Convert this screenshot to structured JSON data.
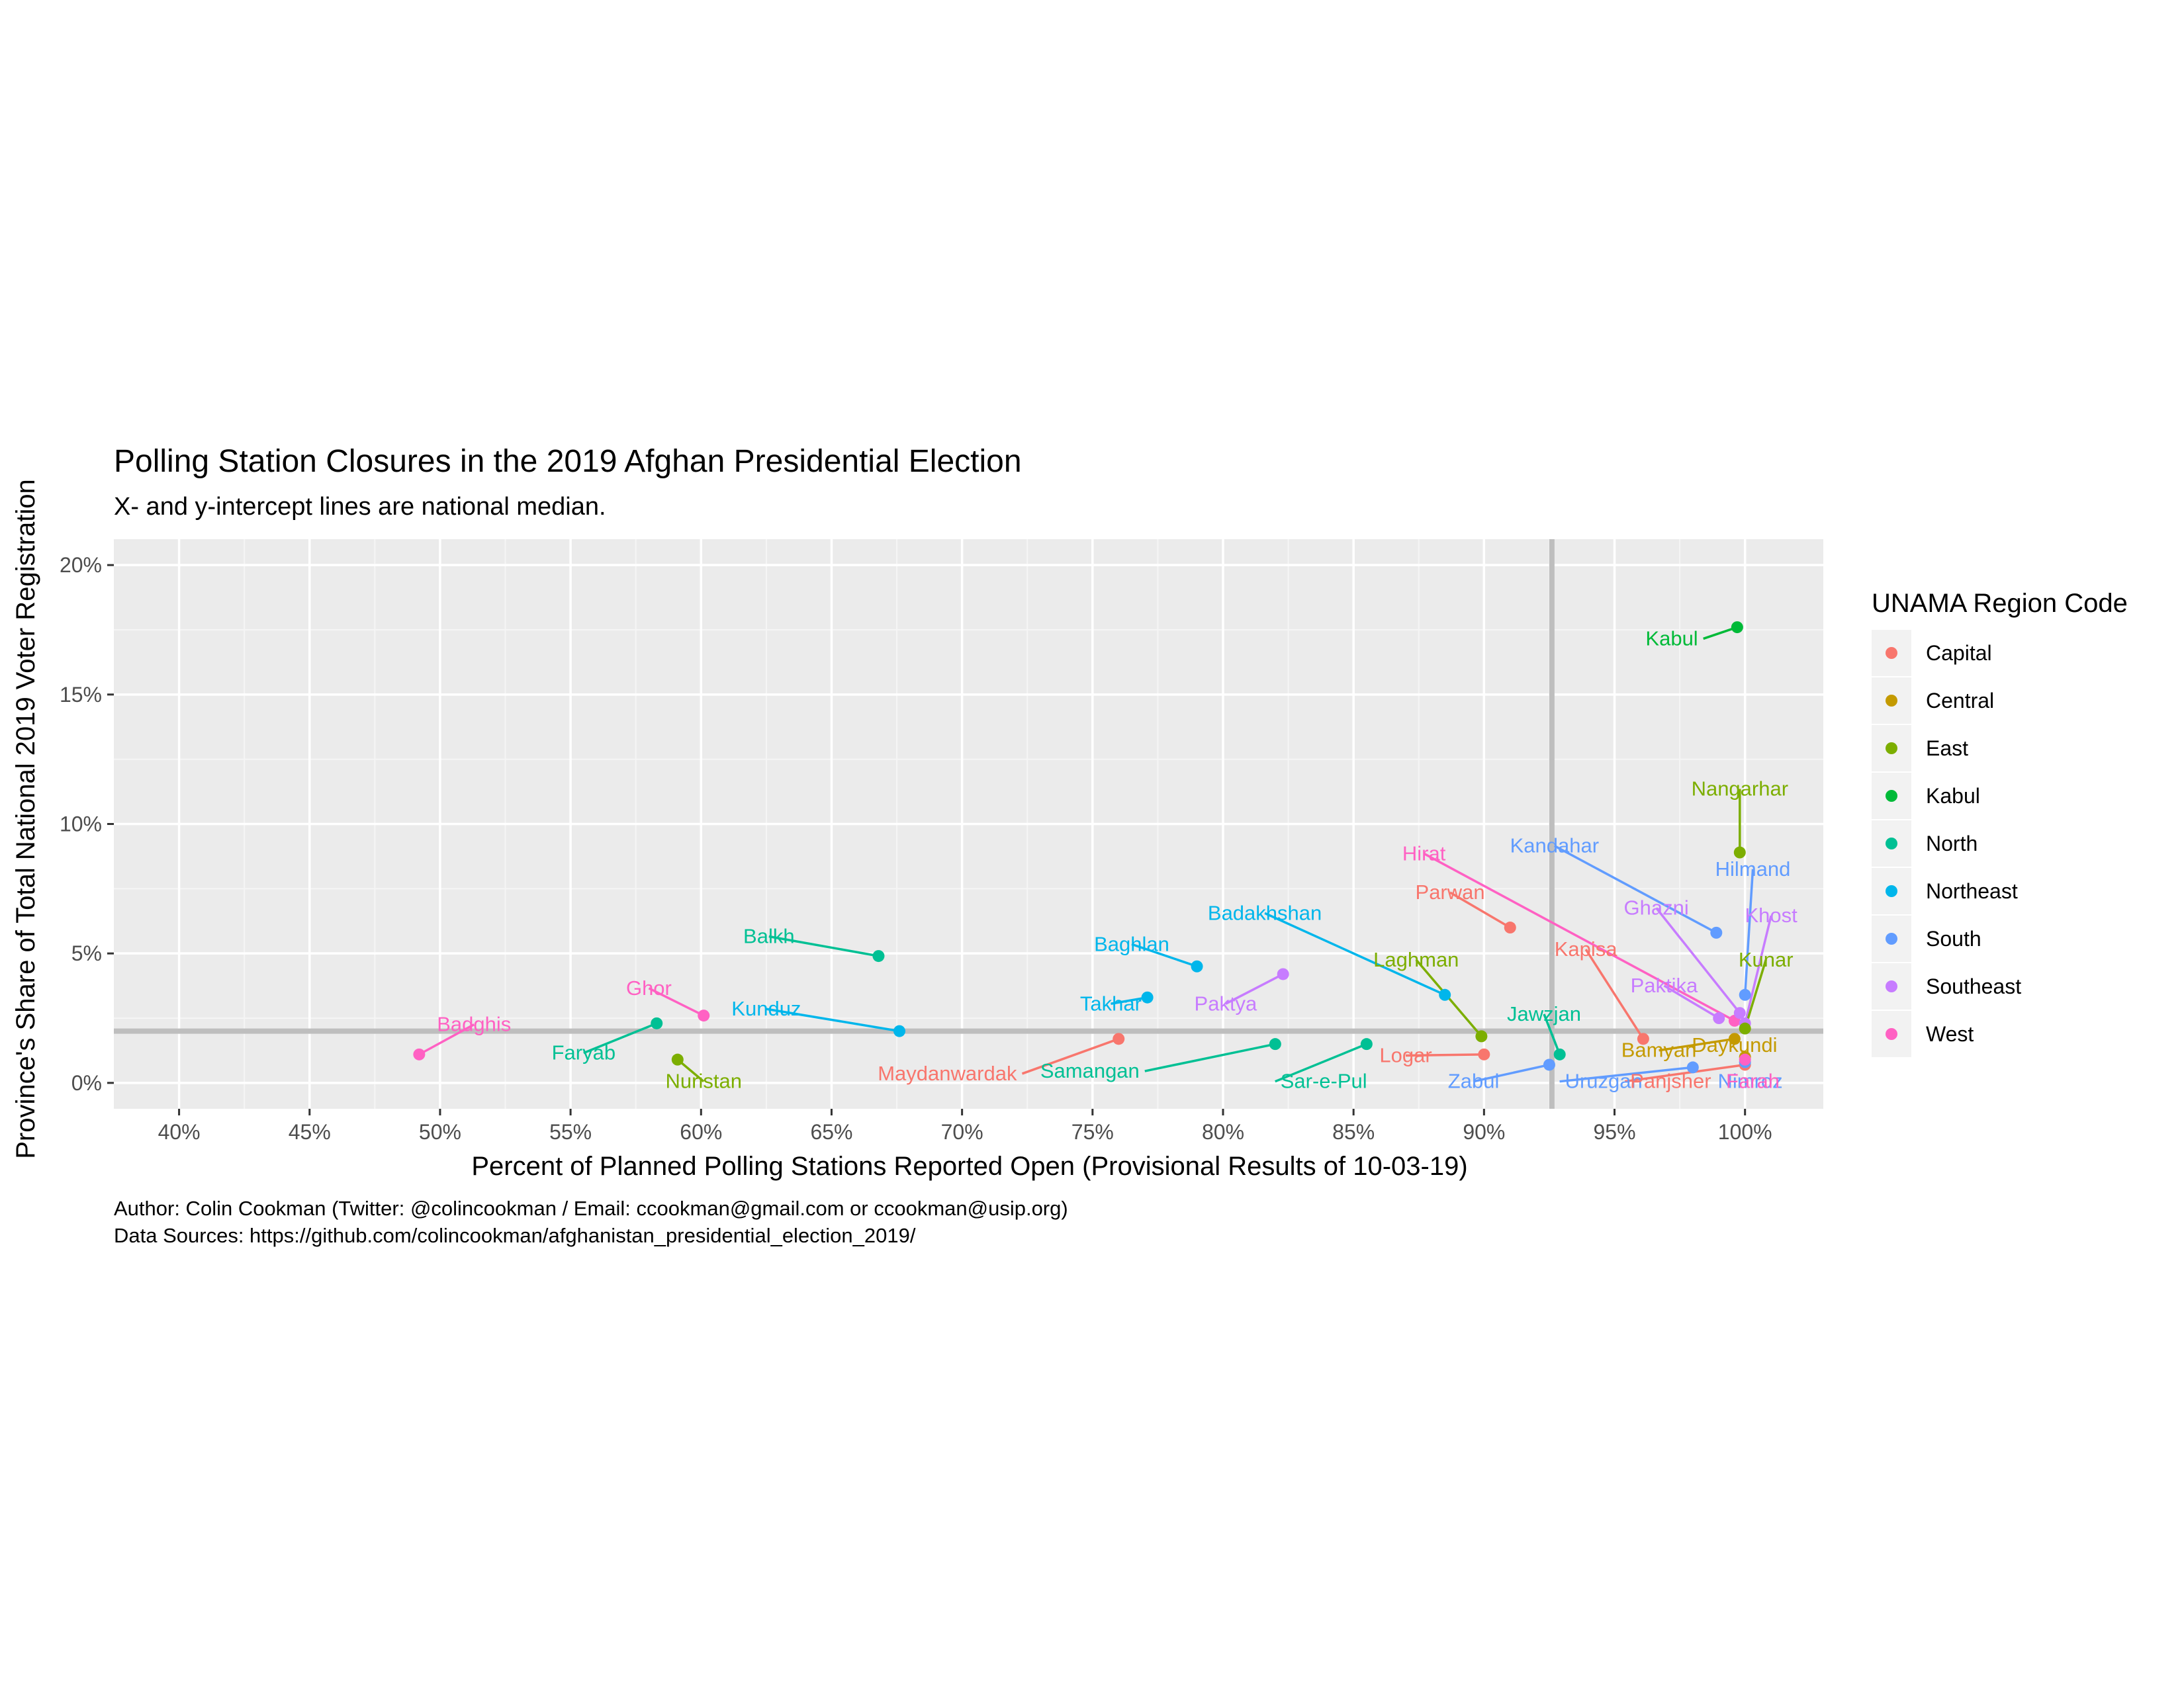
{
  "chart_data": {
    "type": "scatter",
    "title": "Polling Station Closures in the 2019 Afghan Presidential Election",
    "subtitle": "X- and y-intercept lines are national median.",
    "xlabel": "Percent of Planned Polling Stations Reported Open (Provisional Results of 10-03-19)",
    "ylabel": "Province's Share of Total National 2019 Voter Registration",
    "xlim": [
      37.5,
      103
    ],
    "ylim": [
      -1,
      21
    ],
    "x_ticks": [
      40,
      45,
      50,
      55,
      60,
      65,
      70,
      75,
      80,
      85,
      90,
      95,
      100
    ],
    "x_tick_labels": [
      "40%",
      "45%",
      "50%",
      "55%",
      "60%",
      "65%",
      "70%",
      "75%",
      "80%",
      "85%",
      "90%",
      "95%",
      "100%"
    ],
    "y_ticks": [
      0,
      5,
      10,
      15,
      20
    ],
    "y_tick_labels": [
      "0%",
      "5%",
      "10%",
      "15%",
      "20%"
    ],
    "median_x": 92.6,
    "median_y": 2.0,
    "grid": true,
    "legend_title": "UNAMA Region Code",
    "legend_position": "right",
    "regions": [
      {
        "name": "Capital",
        "color": "#F8766D"
      },
      {
        "name": "Central",
        "color": "#C49A00"
      },
      {
        "name": "East",
        "color": "#7CAE00"
      },
      {
        "name": "Kabul",
        "color": "#00BA38"
      },
      {
        "name": "North",
        "color": "#00C094"
      },
      {
        "name": "Northeast",
        "color": "#00B6EB"
      },
      {
        "name": "South",
        "color": "#619CFF"
      },
      {
        "name": "Southeast",
        "color": "#C77CFF"
      },
      {
        "name": "West",
        "color": "#FF61C3"
      }
    ],
    "points": [
      {
        "label": "Kabul",
        "region": "Kabul",
        "x": 99.7,
        "y": 17.6,
        "lx": 98.2,
        "ly": 16.9,
        "anchor": "end"
      },
      {
        "label": "Nangarhar",
        "region": "East",
        "x": 99.8,
        "y": 8.9,
        "lx": 99.8,
        "ly": 11.1,
        "anchor": "middle"
      },
      {
        "label": "Kandahar",
        "region": "South",
        "x": 98.9,
        "y": 5.8,
        "lx": 92.7,
        "ly": 8.9,
        "anchor": "middle"
      },
      {
        "label": "Hilmand",
        "region": "South",
        "x": 100.0,
        "y": 3.4,
        "lx": 100.3,
        "ly": 8.0,
        "anchor": "middle"
      },
      {
        "label": "Hirat",
        "region": "West",
        "x": 99.6,
        "y": 2.4,
        "lx": 87.7,
        "ly": 8.6,
        "anchor": "middle"
      },
      {
        "label": "Parwan",
        "region": "Capital",
        "x": 91.0,
        "y": 6.0,
        "lx": 88.7,
        "ly": 7.1,
        "anchor": "middle"
      },
      {
        "label": "Ghazni",
        "region": "Southeast",
        "x": 99.8,
        "y": 2.7,
        "lx": 96.6,
        "ly": 6.5,
        "anchor": "middle"
      },
      {
        "label": "Khost",
        "region": "Southeast",
        "x": 100.0,
        "y": 2.3,
        "lx": 101.0,
        "ly": 6.2,
        "anchor": "middle"
      },
      {
        "label": "Kapisa",
        "region": "Capital",
        "x": 96.1,
        "y": 1.7,
        "lx": 93.9,
        "ly": 4.9,
        "anchor": "middle"
      },
      {
        "label": "Kunar",
        "region": "East",
        "x": 100.0,
        "y": 2.1,
        "lx": 100.8,
        "ly": 4.5,
        "anchor": "middle"
      },
      {
        "label": "Paktika",
        "region": "Southeast",
        "x": 99.0,
        "y": 2.5,
        "lx": 96.9,
        "ly": 3.5,
        "anchor": "middle"
      },
      {
        "label": "Badakhshan",
        "region": "Northeast",
        "x": 88.5,
        "y": 3.4,
        "lx": 81.6,
        "ly": 6.3,
        "anchor": "middle"
      },
      {
        "label": "Laghman",
        "region": "East",
        "x": 89.9,
        "y": 1.8,
        "lx": 87.4,
        "ly": 4.5,
        "anchor": "middle"
      },
      {
        "label": "Jawzjan",
        "region": "North",
        "x": 92.9,
        "y": 1.1,
        "lx": 92.3,
        "ly": 2.4,
        "anchor": "middle"
      },
      {
        "label": "Bamyan",
        "region": "Central",
        "x": 99.6,
        "y": 1.7,
        "lx": 96.7,
        "ly": 1.0,
        "anchor": "middle"
      },
      {
        "label": "Daykundi",
        "region": "Central",
        "x": 100.0,
        "y": 1.0,
        "lx": 99.6,
        "ly": 1.2,
        "anchor": "middle"
      },
      {
        "label": "Baghlan",
        "region": "Northeast",
        "x": 79.0,
        "y": 4.5,
        "lx": 76.5,
        "ly": 5.1,
        "anchor": "middle"
      },
      {
        "label": "Paktya",
        "region": "Southeast",
        "x": 82.3,
        "y": 4.2,
        "lx": 80.1,
        "ly": 2.8,
        "anchor": "middle"
      },
      {
        "label": "Takhar",
        "region": "Northeast",
        "x": 77.1,
        "y": 3.3,
        "lx": 75.7,
        "ly": 2.8,
        "anchor": "middle"
      },
      {
        "label": "Balkh",
        "region": "North",
        "x": 66.8,
        "y": 4.9,
        "lx": 62.6,
        "ly": 5.4,
        "anchor": "middle"
      },
      {
        "label": "Kunduz",
        "region": "Northeast",
        "x": 67.6,
        "y": 2.0,
        "lx": 62.5,
        "ly": 2.6,
        "anchor": "middle"
      },
      {
        "label": "Ghor",
        "region": "West",
        "x": 60.1,
        "y": 2.6,
        "lx": 58.0,
        "ly": 3.4,
        "anchor": "middle"
      },
      {
        "label": "Badghis",
        "region": "West",
        "x": 49.2,
        "y": 1.1,
        "lx": 51.3,
        "ly": 2.0,
        "anchor": "middle"
      },
      {
        "label": "Faryab",
        "region": "North",
        "x": 58.3,
        "y": 2.3,
        "lx": 55.5,
        "ly": 0.9,
        "anchor": "middle"
      },
      {
        "label": "Nuristan",
        "region": "East",
        "x": 59.1,
        "y": 0.9,
        "lx": 60.1,
        "ly": -0.2,
        "anchor": "middle"
      },
      {
        "label": "Maydanwardak",
        "region": "Capital",
        "x": 76.0,
        "y": 1.7,
        "lx": 72.1,
        "ly": 0.1,
        "anchor": "end"
      },
      {
        "label": "Samangan",
        "region": "North",
        "x": 82.0,
        "y": 1.5,
        "lx": 76.8,
        "ly": 0.2,
        "anchor": "end"
      },
      {
        "label": "Sar-e-Pul",
        "region": "North",
        "x": 85.5,
        "y": 1.5,
        "lx": 82.2,
        "ly": -0.2,
        "anchor": "start"
      },
      {
        "label": "Logar",
        "region": "Capital",
        "x": 90.0,
        "y": 1.1,
        "lx": 87.0,
        "ly": 0.8,
        "anchor": "middle"
      },
      {
        "label": "Zabul",
        "region": "South",
        "x": 92.5,
        "y": 0.7,
        "lx": 89.6,
        "ly": -0.2,
        "anchor": "middle"
      },
      {
        "label": "Uruzgan",
        "region": "South",
        "x": 98.0,
        "y": 0.6,
        "lx": 93.1,
        "ly": -0.2,
        "anchor": "start"
      },
      {
        "label": "Panjsher",
        "region": "Capital",
        "x": 100.0,
        "y": 0.7,
        "lx": 95.6,
        "ly": -0.2,
        "anchor": "start"
      },
      {
        "label": "Nimroz",
        "region": "South",
        "x": 100.0,
        "y": 0.8,
        "lx": 100.2,
        "ly": -0.2,
        "anchor": "middle"
      },
      {
        "label": "Farah",
        "region": "West",
        "x": 100.0,
        "y": 0.9,
        "lx": 100.3,
        "ly": -0.2,
        "anchor": "middle"
      }
    ],
    "caption": [
      "Author: Colin Cookman (Twitter: @colincookman / Email: ccookman@gmail.com or ccookman@usip.org)",
      "Data Sources: https://github.com/colincookman/afghanistan_presidential_election_2019/"
    ]
  }
}
